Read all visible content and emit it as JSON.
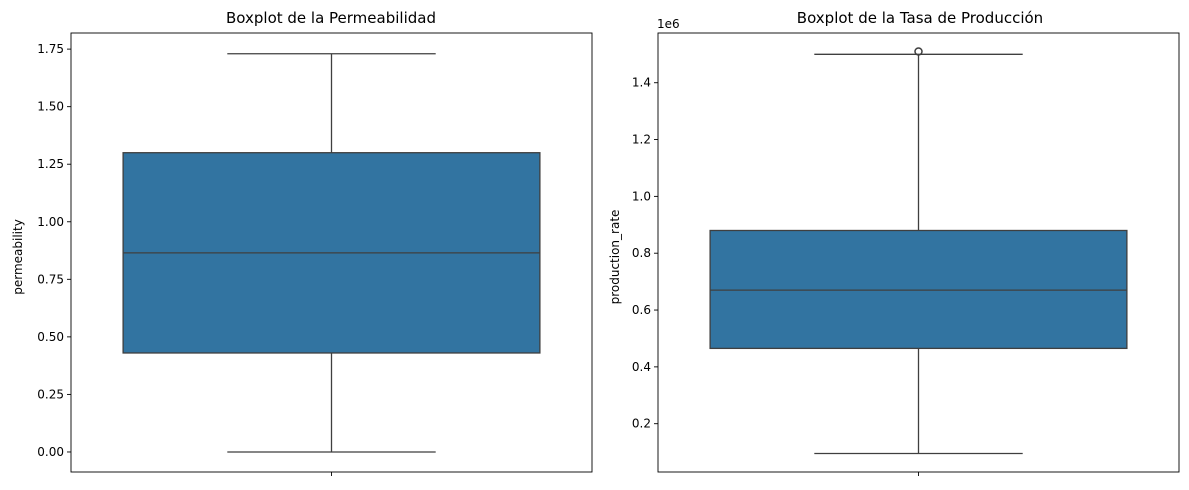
{
  "chart_data": [
    {
      "type": "box",
      "title": "Boxplot de la Permeabilidad",
      "xlabel": "",
      "ylabel": "permeability",
      "ylim": [
        -0.087,
        1.82
      ],
      "yticks": [
        0.0,
        0.25,
        0.5,
        0.75,
        1.0,
        1.25,
        1.5,
        1.75
      ],
      "ytick_labels": [
        "0.00",
        "0.25",
        "0.50",
        "0.75",
        "1.00",
        "1.25",
        "1.50",
        "1.75"
      ],
      "offset_text": "",
      "box": {
        "whisker_low": 0.0,
        "q1": 0.43,
        "median": 0.865,
        "q3": 1.3,
        "whisker_high": 1.73,
        "outliers": []
      },
      "color": "#3274a1",
      "line_color": "#3f3f3f"
    },
    {
      "type": "box",
      "title": "Boxplot de la Tasa de Producción",
      "xlabel": "",
      "ylabel": "production_rate",
      "ylim": [
        0.03,
        1.575
      ],
      "yticks": [
        0.2,
        0.4,
        0.6,
        0.8,
        1.0,
        1.2,
        1.4
      ],
      "ytick_labels": [
        "0.2",
        "0.4",
        "0.6",
        "0.8",
        "1.0",
        "1.2",
        "1.4"
      ],
      "offset_text": "1e6",
      "box": {
        "whisker_low": 0.095,
        "q1": 0.465,
        "median": 0.67,
        "q3": 0.88,
        "whisker_high": 1.5,
        "outliers": [
          1.51
        ]
      },
      "color": "#3274a1",
      "line_color": "#3f3f3f"
    }
  ]
}
